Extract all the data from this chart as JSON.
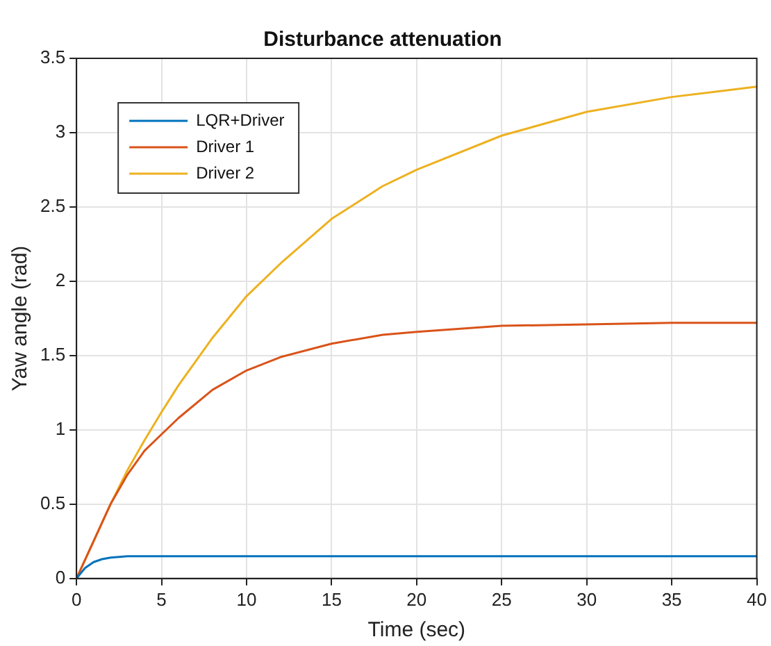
{
  "chart_data": {
    "type": "line",
    "title": "Disturbance attenuation",
    "xlabel": "Time (sec)",
    "ylabel": "Yaw angle (rad)",
    "xlim": [
      0,
      40
    ],
    "xticks": [
      0,
      5,
      10,
      15,
      20,
      25,
      30,
      35,
      40
    ],
    "ylim": [
      0,
      3.5
    ],
    "yticks": [
      0,
      0.5,
      1,
      1.5,
      2,
      2.5,
      3,
      3.5
    ],
    "grid": true,
    "legend": "top left",
    "marker": "none",
    "line_style": "solid",
    "series": [
      {
        "name": "LQR+Driver",
        "color": "#0072bd",
        "x": [
          0,
          0.5,
          1,
          1.5,
          2,
          3,
          4,
          5,
          10,
          20,
          30,
          40
        ],
        "values": [
          0,
          0.07,
          0.11,
          0.13,
          0.14,
          0.15,
          0.15,
          0.15,
          0.15,
          0.15,
          0.15,
          0.15
        ]
      },
      {
        "name": "Driver 1",
        "color": "#d95319",
        "x": [
          0,
          1,
          2,
          3,
          4,
          5,
          6,
          8,
          10,
          12,
          15,
          18,
          20,
          25,
          30,
          35,
          40
        ],
        "values": [
          0,
          0.25,
          0.5,
          0.7,
          0.86,
          0.97,
          1.08,
          1.27,
          1.4,
          1.49,
          1.58,
          1.64,
          1.66,
          1.7,
          1.71,
          1.72,
          1.72
        ]
      },
      {
        "name": "Driver 2",
        "color": "#edb120",
        "x": [
          0,
          1,
          2,
          3,
          4,
          5,
          6,
          8,
          10,
          12,
          15,
          18,
          20,
          25,
          30,
          35,
          40
        ],
        "values": [
          0,
          0.25,
          0.5,
          0.73,
          0.93,
          1.12,
          1.3,
          1.62,
          1.9,
          2.12,
          2.42,
          2.64,
          2.75,
          2.98,
          3.14,
          3.24,
          3.31
        ]
      }
    ]
  }
}
